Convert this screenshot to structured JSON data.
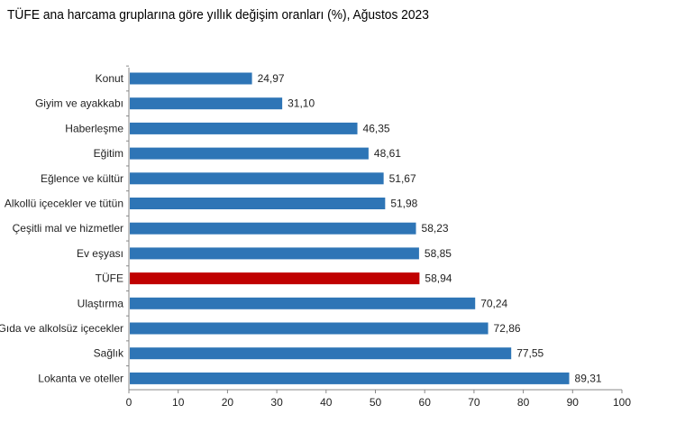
{
  "chart_data": {
    "type": "bar",
    "orientation": "horizontal",
    "title": "TÜFE ana harcama gruplarına göre yıllık değişim oranları (%), Ağustos 2023",
    "categories": [
      "Konut",
      "Giyim ve ayakkabı",
      "Haberleşme",
      "Eğitim",
      "Eğlence ve kültür",
      "Alkollü içecekler ve tütün",
      "Çeşitli mal ve hizmetler",
      "Ev eşyası",
      "TÜFE",
      "Ulaştırma",
      "Gıda ve alkolsüz içecekler",
      "Sağlık",
      "Lokanta ve oteller"
    ],
    "values": [
      24.97,
      31.1,
      46.35,
      48.61,
      51.67,
      51.98,
      58.23,
      58.85,
      58.94,
      70.24,
      72.86,
      77.55,
      89.31
    ],
    "value_labels": [
      "24,97",
      "31,10",
      "46,35",
      "48,61",
      "51,67",
      "51,98",
      "58,23",
      "58,85",
      "58,94",
      "70,24",
      "72,86",
      "77,55",
      "89,31"
    ],
    "xlim": [
      0,
      100
    ],
    "xticks": [
      "0",
      "10",
      "20",
      "30",
      "40",
      "50",
      "60",
      "70",
      "80",
      "90",
      "100"
    ],
    "grid": false,
    "colors": {
      "bar": "#2E75B6",
      "highlight": "#C00000",
      "highlight_category": "TÜFE"
    }
  }
}
